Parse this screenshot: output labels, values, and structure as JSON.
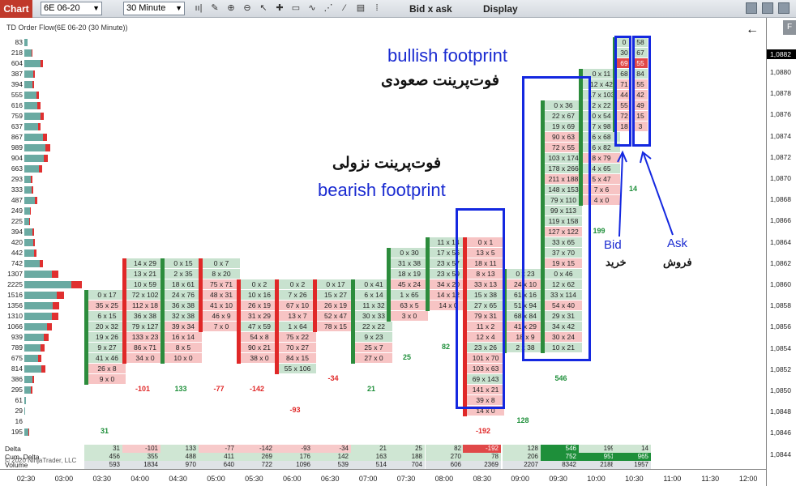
{
  "toolbar": {
    "chart_tab": "Chart",
    "instrument": "6E 06-20",
    "interval": "30 Minute",
    "bid_ask_label": "Bid x ask",
    "display_label": "Display"
  },
  "chart": {
    "title": "TD Order Flow(6E 06-20 (30 Minute))",
    "copyright": "© 2020 NinjaTrader, LLC",
    "current_price": "1,0882",
    "price_ticks": [
      "1,0880",
      "1,0878",
      "1,0876",
      "1,0874",
      "1,0872",
      "1,0870",
      "1,0868",
      "1,0866",
      "1,0864",
      "1,0862",
      "1,0860",
      "1,0858",
      "1,0856",
      "1,0854",
      "1,0852",
      "1,0850",
      "1,0848",
      "1,0846",
      "1,0844"
    ],
    "time_ticks": [
      "02:30",
      "03:00",
      "03:30",
      "04:00",
      "04:30",
      "05:00",
      "05:30",
      "06:00",
      "06:30",
      "07:00",
      "07:30",
      "08:00",
      "08:30",
      "09:00",
      "09:30",
      "10:00",
      "10:30",
      "11:00",
      "11:30",
      "12:00"
    ]
  },
  "volume_profile": [
    {
      "label": "83",
      "g": 4,
      "r": 0
    },
    {
      "label": "218",
      "g": 9,
      "r": 1
    },
    {
      "label": "604",
      "g": 20,
      "r": 3
    },
    {
      "label": "387",
      "g": 11,
      "r": 2
    },
    {
      "label": "394",
      "g": 10,
      "r": 2
    },
    {
      "label": "555",
      "g": 15,
      "r": 3
    },
    {
      "label": "616",
      "g": 16,
      "r": 4
    },
    {
      "label": "759",
      "g": 20,
      "r": 4
    },
    {
      "label": "637",
      "g": 17,
      "r": 3
    },
    {
      "label": "867",
      "g": 23,
      "r": 5
    },
    {
      "label": "989",
      "g": 26,
      "r": 6
    },
    {
      "label": "904",
      "g": 24,
      "r": 5
    },
    {
      "label": "663",
      "g": 18,
      "r": 4
    },
    {
      "label": "293",
      "g": 8,
      "r": 2
    },
    {
      "label": "333",
      "g": 9,
      "r": 2
    },
    {
      "label": "487",
      "g": 13,
      "r": 3
    },
    {
      "label": "249",
      "g": 7,
      "r": 1
    },
    {
      "label": "225",
      "g": 6,
      "r": 1
    },
    {
      "label": "394",
      "g": 10,
      "r": 2
    },
    {
      "label": "420",
      "g": 11,
      "r": 2
    },
    {
      "label": "442",
      "g": 12,
      "r": 3
    },
    {
      "label": "742",
      "g": 19,
      "r": 4
    },
    {
      "label": "1307",
      "g": 34,
      "r": 8
    },
    {
      "label": "2225",
      "g": 58,
      "r": 13
    },
    {
      "label": "1516",
      "g": 40,
      "r": 9
    },
    {
      "label": "1356",
      "g": 35,
      "r": 8
    },
    {
      "label": "1310",
      "g": 34,
      "r": 8
    },
    {
      "label": "1066",
      "g": 28,
      "r": 6
    },
    {
      "label": "939",
      "g": 24,
      "r": 6
    },
    {
      "label": "789",
      "g": 20,
      "r": 5
    },
    {
      "label": "675",
      "g": 17,
      "r": 4
    },
    {
      "label": "814",
      "g": 21,
      "r": 5
    },
    {
      "label": "386",
      "g": 10,
      "r": 2
    },
    {
      "label": "295",
      "g": 8,
      "r": 2
    },
    {
      "label": "61",
      "g": 2,
      "r": 0
    },
    {
      "label": "29",
      "g": 1,
      "r": 0
    },
    {
      "label": "16",
      "g": 0,
      "r": 0
    },
    {
      "label": "195",
      "g": 5,
      "r": 1
    }
  ],
  "annotations": {
    "bullish_en": "bullish footprint",
    "bullish_fa": "فوت‌پرینت صعودی",
    "bearish_fa": "فوت‌پرینت نزولی",
    "bearish_en": "bearish footprint",
    "bid_en": "Bid",
    "bid_fa": "خرید",
    "ask_en": "Ask",
    "ask_fa": "فروش"
  },
  "bars": [
    {
      "deltaLabel": "31",
      "cells": [
        [
          "0 x 17",
          "g"
        ],
        [
          "35 x 25",
          "r"
        ],
        [
          "6 x 15",
          "g"
        ],
        [
          "20 x 32",
          "g"
        ],
        [
          "19 x 26",
          "g"
        ],
        [
          "9 x 27",
          "g"
        ],
        [
          "41 x 46",
          "g"
        ],
        [
          "26 x 8",
          "r"
        ],
        [
          "9 x 0",
          "r"
        ]
      ]
    },
    {
      "deltaLabel": "-101",
      "cells": [
        [
          "14 x 29",
          "g"
        ],
        [
          "13 x 21",
          "g"
        ],
        [
          "10 x 59",
          "g"
        ],
        [
          "72 x 102",
          "g"
        ],
        [
          "112 x 18",
          "r"
        ],
        [
          "36 x 38",
          "g"
        ],
        [
          "79 x 127",
          "g"
        ],
        [
          "133 x 23",
          "r"
        ],
        [
          "86 x 71",
          "r"
        ],
        [
          "34 x 0",
          "r"
        ]
      ]
    },
    {
      "deltaLabel": "133",
      "cells": [
        [
          "0 x 15",
          "g"
        ],
        [
          "2 x 35",
          "g"
        ],
        [
          "18 x 61",
          "g"
        ],
        [
          "24 x 76",
          "g"
        ],
        [
          "36 x 38",
          "g"
        ],
        [
          "32 x 38",
          "g"
        ],
        [
          "39 x 34",
          "r"
        ],
        [
          "16 x 14",
          "r"
        ],
        [
          "8 x 5",
          "r"
        ],
        [
          "10 x 0",
          "r"
        ]
      ]
    },
    {
      "deltaLabel": "-77",
      "cells": [
        [
          "0 x 7",
          "g"
        ],
        [
          "8 x 20",
          "g"
        ],
        [
          "75 x 71",
          "r"
        ],
        [
          "48 x 31",
          "r"
        ],
        [
          "41 x 10",
          "r"
        ],
        [
          "46 x 9",
          "r"
        ],
        [
          "7 x 0",
          "r"
        ]
      ]
    },
    {
      "deltaLabel": "-142",
      "cells": [
        [
          "0 x 2",
          "g"
        ],
        [
          "10 x 16",
          "g"
        ],
        [
          "26 x 19",
          "r"
        ],
        [
          "31 x 29",
          "r"
        ],
        [
          "47 x 59",
          "g"
        ],
        [
          "54 x 8",
          "r"
        ],
        [
          "90 x 21",
          "r"
        ],
        [
          "38 x 0",
          "r"
        ]
      ]
    },
    {
      "deltaLabel": "-93",
      "cells": [
        [
          "0 x 2",
          "g"
        ],
        [
          "7 x 26",
          "g"
        ],
        [
          "67 x 10",
          "r"
        ],
        [
          "13 x 7",
          "r"
        ],
        [
          "1 x 64",
          "g"
        ],
        [
          "75 x 22",
          "r"
        ],
        [
          "70 x 27",
          "r"
        ],
        [
          "84 x 15",
          "r"
        ],
        [
          "55 x 106",
          "g"
        ]
      ]
    },
    {
      "deltaLabel": "-34",
      "cells": [
        [
          "0 x 17",
          "g"
        ],
        [
          "15 x 27",
          "g"
        ],
        [
          "26 x 19",
          "r"
        ],
        [
          "52 x 47",
          "r"
        ],
        [
          "78 x 15",
          "r"
        ]
      ]
    },
    {
      "deltaLabel": "21",
      "cells": [
        [
          "0 x 41",
          "g"
        ],
        [
          "6 x 14",
          "g"
        ],
        [
          "11 x 32",
          "g"
        ],
        [
          "30 x 33",
          "g"
        ],
        [
          "22 x 22",
          "g"
        ],
        [
          "9 x 23",
          "g"
        ],
        [
          "25 x 7",
          "r"
        ],
        [
          "27 x 0",
          "r"
        ]
      ]
    },
    {
      "deltaLabel": "25",
      "cells": [
        [
          "0 x 30",
          "g"
        ],
        [
          "31 x 38",
          "g"
        ],
        [
          "18 x 19",
          "g"
        ],
        [
          "45 x 24",
          "r"
        ],
        [
          "1 x 65",
          "g"
        ],
        [
          "63 x 5",
          "r"
        ],
        [
          "3 x 0",
          "r"
        ]
      ]
    },
    {
      "deltaLabel": "82",
      "cells": [
        [
          "11 x 14",
          "g"
        ],
        [
          "17 x 56",
          "g"
        ],
        [
          "23 x 57",
          "g"
        ],
        [
          "23 x 59",
          "g"
        ],
        [
          "34 x 20",
          "r"
        ],
        [
          "14 x 12",
          "r"
        ],
        [
          "14 x 0",
          "r"
        ]
      ]
    },
    {
      "deltaLabel": "-192",
      "cells": [
        [
          "0 x 1",
          "r"
        ],
        [
          "13 x 5",
          "r"
        ],
        [
          "18 x 11",
          "r"
        ],
        [
          "8 x 13",
          "r"
        ],
        [
          "33 x 13",
          "r"
        ],
        [
          "15 x 38",
          "g"
        ],
        [
          "27 x 65",
          "g"
        ],
        [
          "79 x 31",
          "r"
        ],
        [
          "11 x 2",
          "r"
        ],
        [
          "12 x 4",
          "r"
        ],
        [
          "23 x 26",
          "g"
        ],
        [
          "101 x 70",
          "r"
        ],
        [
          "103 x 63",
          "r"
        ],
        [
          "69 x 143",
          "g"
        ],
        [
          "141 x 21",
          "r"
        ],
        [
          "39 x 8",
          "r"
        ],
        [
          "14 x 0",
          "r"
        ]
      ]
    },
    {
      "deltaLabel": "128",
      "cells": [
        [
          "0 x 23",
          "g"
        ],
        [
          "24 x 10",
          "r"
        ],
        [
          "61 x 16",
          "g"
        ],
        [
          "51 x 94",
          "g"
        ],
        [
          "68 x 84",
          "g"
        ],
        [
          "41 x 29",
          "r"
        ],
        [
          "18 x 9",
          "r"
        ],
        [
          "2 x 38",
          "g"
        ]
      ]
    },
    {
      "deltaLabel": "546",
      "cells": [
        [
          "0 x 36",
          "g"
        ],
        [
          "22 x 67",
          "g"
        ],
        [
          "19 x 69",
          "g"
        ],
        [
          "90 x 63",
          "r"
        ],
        [
          "72 x 55",
          "r"
        ],
        [
          "103 x 174",
          "g"
        ],
        [
          "178 x 266",
          "g"
        ],
        [
          "211 x 188",
          "r"
        ],
        [
          "148 x 153",
          "g"
        ],
        [
          "79 x 110",
          "g"
        ],
        [
          "99 x 113",
          "g"
        ],
        [
          "119 x 158",
          "g"
        ],
        [
          "127 x 122",
          "r"
        ],
        [
          "33 x 65",
          "g"
        ],
        [
          "37 x 70",
          "g"
        ],
        [
          "19 x 15",
          "r"
        ],
        [
          "0 x 46",
          "g"
        ],
        [
          "12 x 62",
          "g"
        ],
        [
          "33 x 114",
          "g"
        ],
        [
          "54 x 40",
          "r"
        ],
        [
          "29 x 31",
          "g"
        ],
        [
          "34 x 42",
          "g"
        ],
        [
          "30 x 24",
          "r"
        ],
        [
          "10 x 21",
          "g"
        ]
      ]
    },
    {
      "deltaLabel": "199",
      "cells": [
        [
          "0 x 11",
          "g"
        ],
        [
          "12 x 42",
          "g"
        ],
        [
          "17 x 103",
          "g"
        ],
        [
          "2 x 22",
          "g"
        ],
        [
          "0 x 54",
          "g"
        ],
        [
          "7 x 98",
          "g"
        ],
        [
          "6 x 68",
          "g"
        ],
        [
          "6 x 82",
          "g"
        ],
        [
          "8 x 79",
          "r"
        ],
        [
          "4 x 65",
          "g"
        ],
        [
          "5 x 47",
          "r"
        ],
        [
          "7 x 6",
          "r"
        ],
        [
          "4 x 0",
          "r"
        ]
      ]
    },
    {
      "deltaLabel": "14",
      "cells": [
        [
          "0",
          "58",
          "g"
        ],
        [
          "30",
          "67",
          "g"
        ],
        [
          "69",
          "55",
          "dr"
        ],
        [
          "68",
          "84",
          "g"
        ],
        [
          "71",
          "55",
          "r"
        ],
        [
          "44",
          "42",
          "r"
        ],
        [
          "55",
          "49",
          "r"
        ],
        [
          "72",
          "15",
          "r"
        ],
        [
          "18",
          "3",
          "r"
        ]
      ]
    }
  ],
  "summary": {
    "delta_label": "Delta",
    "cum_label": "Cum. Delta",
    "vol_label": "Volume",
    "delta": [
      "31",
      "-101",
      "133",
      "-77",
      "-142",
      "-93",
      "-34",
      "21",
      "25",
      "82",
      "-192",
      "128",
      "546",
      "199",
      "14"
    ],
    "cum": [
      "456",
      "355",
      "488",
      "411",
      "269",
      "176",
      "142",
      "163",
      "188",
      "270",
      "78",
      "206",
      "752",
      "951",
      "965"
    ],
    "vol": [
      "593",
      "1834",
      "970",
      "640",
      "722",
      "1096",
      "539",
      "514",
      "704",
      "606",
      "2369",
      "2207",
      "8342",
      "2188",
      "1957"
    ]
  },
  "colors": {
    "bid_ask_highlight": "#1428e0",
    "positive": "#1e8f3a",
    "negative": "#e02828"
  }
}
